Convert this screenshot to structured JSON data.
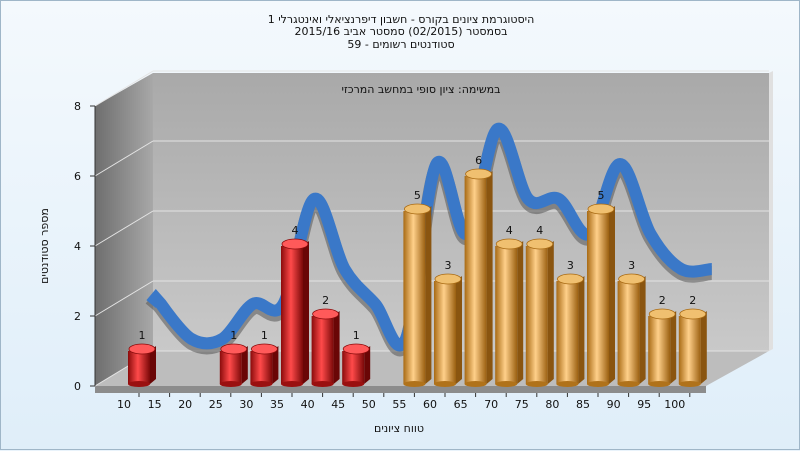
{
  "chart_data": {
    "type": "bar",
    "title_lines": [
      "היסטוגרמת ציונים בקורס - חשבון דיפרנציאלי ואינטגרלי 1",
      "בסמסטר  (02/2015)  סמסטר אביב 2015/16",
      "סטודנטים רשומים - 59"
    ],
    "annotation": "במשימה: ציון סופי במחשב המרכזי",
    "xlabel": "טווח ציונים",
    "ylabel": "מספר סטודנטים",
    "ylim": [
      0,
      8
    ],
    "yticks": [
      0,
      2,
      4,
      6,
      8
    ],
    "categories": [
      "10",
      "15",
      "20",
      "25",
      "30",
      "35",
      "40",
      "45",
      "50",
      "55",
      "60",
      "65",
      "70",
      "75",
      "80",
      "85",
      "90",
      "95",
      "100"
    ],
    "values": [
      1,
      0,
      0,
      1,
      1,
      4,
      2,
      1,
      0,
      5,
      3,
      6,
      4,
      4,
      3,
      5,
      3,
      2,
      2
    ],
    "bar_colors": {
      "fail": "#e02020",
      "pass": "#e8a440"
    },
    "pass_from": "55",
    "trend_line_color": "#3a78c8",
    "grid": true
  }
}
